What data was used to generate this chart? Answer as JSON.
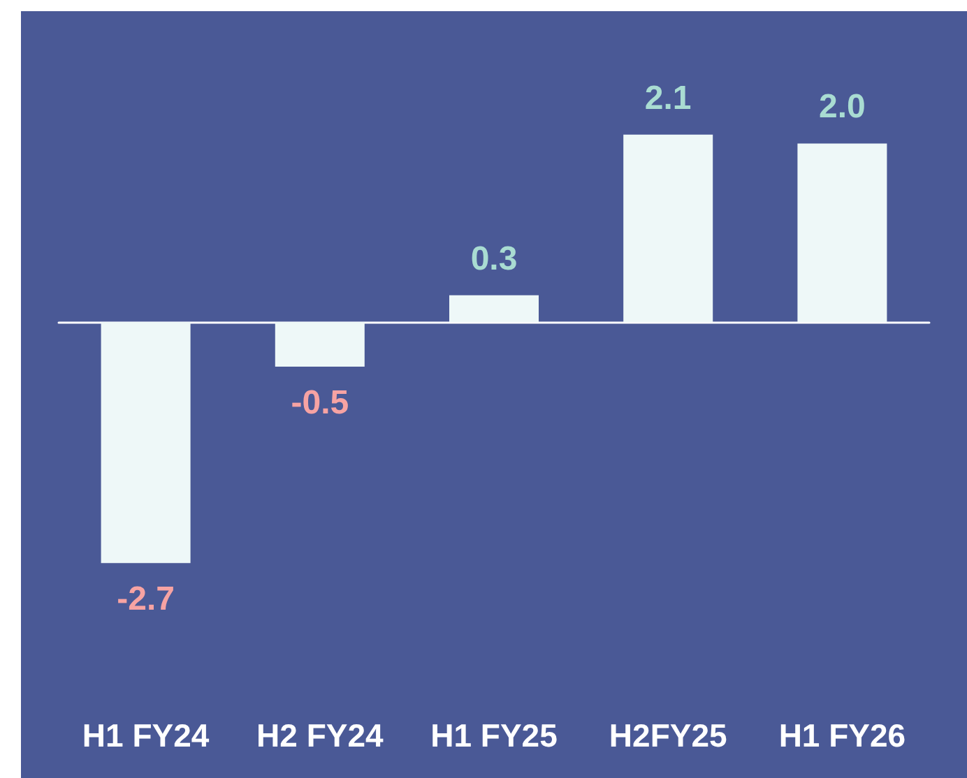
{
  "chart_data": {
    "type": "bar",
    "categories": [
      "H1 FY24",
      "H2 FY24",
      "H1 FY25",
      "H2FY25",
      "H1 FY26"
    ],
    "values": [
      -2.7,
      -0.5,
      0.3,
      2.1,
      2.0
    ],
    "value_labels": [
      "-2.7",
      "-0.5",
      "0.3",
      "2.1",
      "2.0"
    ],
    "color": "#eef8f8"
  }
}
